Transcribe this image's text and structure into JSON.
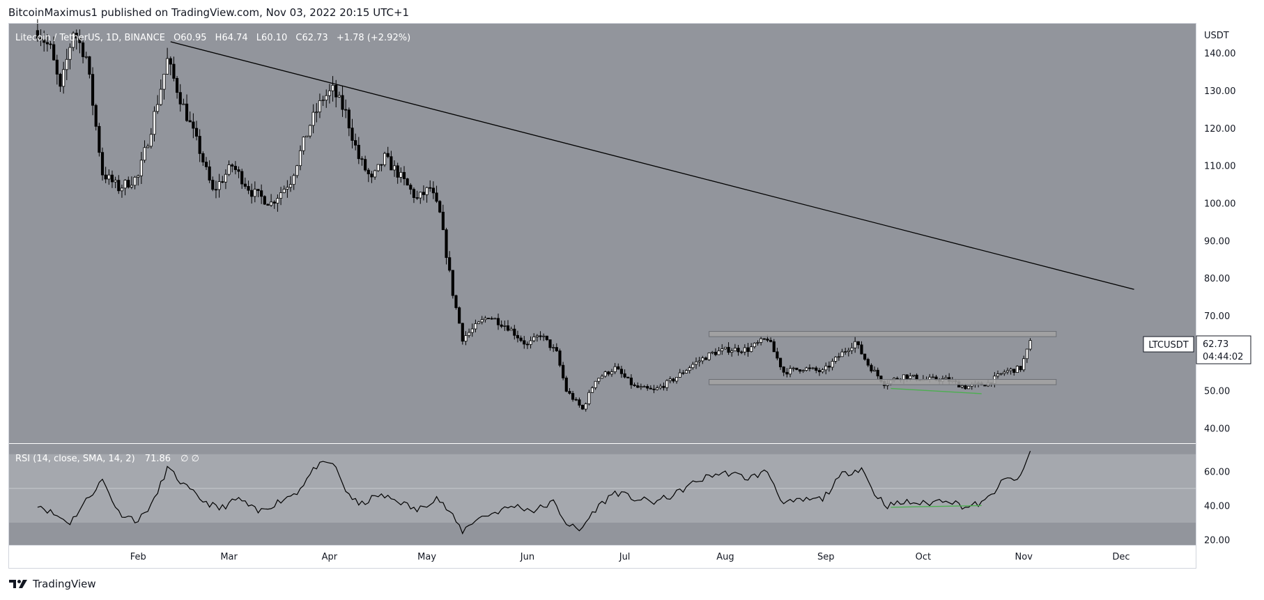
{
  "header": {
    "text": "BitcoinMaximus1 published on TradingView.com, Nov 03, 2022 20:15 UTC+1"
  },
  "footer": {
    "brand": "TradingView",
    "logo_icon": "tradingview-logo-icon"
  },
  "legend": {
    "symbol": "Litecoin / TetherUS, 1D, BINANCE",
    "o_label": "O",
    "o": "60.95",
    "h_label": "H",
    "h": "64.74",
    "l_label": "L",
    "l": "60.10",
    "c_label": "C",
    "c": "62.73",
    "change": "+1.78 (+2.92%)"
  },
  "price_tag": {
    "symbol": "LTCUSDT",
    "price": "62.73",
    "countdown": "04:44:02"
  },
  "rsi_legend": {
    "text": "RSI (14, close, SMA, 14, 2)",
    "value": "71.86",
    "extra": "∅  ∅"
  },
  "colors": {
    "pane_bg": "#92959c",
    "rsi_band": "#a5a8ae",
    "candle": "#000000",
    "trendline": "#000000",
    "channel_fill": "#a3a3a3",
    "divergence": "#4caf50"
  },
  "chart_data": [
    {
      "type": "candlestick",
      "title": "Litecoin / TetherUS, 1D, BINANCE",
      "ylabel": "USDT",
      "ylim": [
        36,
        148
      ],
      "y_ticks": [
        "140.00",
        "130.00",
        "120.00",
        "110.00",
        "100.00",
        "90.00",
        "80.00",
        "70.00",
        "60.00",
        "50.00",
        "40.00"
      ],
      "x_ticks": [
        "Feb",
        "Mar",
        "Apr",
        "May",
        "Jun",
        "Jul",
        "Aug",
        "Sep",
        "Oct",
        "Nov",
        "Dec"
      ],
      "grid": false,
      "close_path": [
        [
          "2022-01-01",
          146
        ],
        [
          "2022-01-05",
          141
        ],
        [
          "2022-01-08",
          130
        ],
        [
          "2022-01-12",
          146
        ],
        [
          "2022-01-16",
          139
        ],
        [
          "2022-01-21",
          108
        ],
        [
          "2022-01-26",
          104
        ],
        [
          "2022-02-01",
          107
        ],
        [
          "2022-02-05",
          120
        ],
        [
          "2022-02-10",
          138
        ],
        [
          "2022-02-14",
          128
        ],
        [
          "2022-02-20",
          114
        ],
        [
          "2022-02-24",
          103
        ],
        [
          "2022-03-02",
          110
        ],
        [
          "2022-03-08",
          103
        ],
        [
          "2022-03-14",
          100
        ],
        [
          "2022-03-20",
          106
        ],
        [
          "2022-03-26",
          121
        ],
        [
          "2022-03-30",
          128
        ],
        [
          "2022-04-02",
          130
        ],
        [
          "2022-04-06",
          124
        ],
        [
          "2022-04-10",
          112
        ],
        [
          "2022-04-14",
          106
        ],
        [
          "2022-04-18",
          112
        ],
        [
          "2022-04-22",
          108
        ],
        [
          "2022-04-28",
          101
        ],
        [
          "2022-05-02",
          104
        ],
        [
          "2022-05-05",
          97
        ],
        [
          "2022-05-09",
          76
        ],
        [
          "2022-05-12",
          64
        ],
        [
          "2022-05-16",
          67
        ],
        [
          "2022-05-20",
          70
        ],
        [
          "2022-05-26",
          67
        ],
        [
          "2022-06-01",
          62
        ],
        [
          "2022-06-05",
          65
        ],
        [
          "2022-06-10",
          60
        ],
        [
          "2022-06-13",
          50
        ],
        [
          "2022-06-18",
          45
        ],
        [
          "2022-06-22",
          53
        ],
        [
          "2022-06-28",
          56
        ],
        [
          "2022-07-04",
          51
        ],
        [
          "2022-07-10",
          50
        ],
        [
          "2022-07-16",
          53
        ],
        [
          "2022-07-22",
          57
        ],
        [
          "2022-07-28",
          60
        ],
        [
          "2022-08-02",
          61
        ],
        [
          "2022-08-08",
          61
        ],
        [
          "2022-08-14",
          64
        ],
        [
          "2022-08-19",
          55
        ],
        [
          "2022-08-25",
          56
        ],
        [
          "2022-08-31",
          55
        ],
        [
          "2022-09-06",
          60
        ],
        [
          "2022-09-10",
          63
        ],
        [
          "2022-09-14",
          57
        ],
        [
          "2022-09-19",
          52
        ],
        [
          "2022-09-25",
          54
        ],
        [
          "2022-10-01",
          53
        ],
        [
          "2022-10-08",
          53
        ],
        [
          "2022-10-14",
          51
        ],
        [
          "2022-10-21",
          52
        ],
        [
          "2022-10-26",
          55
        ],
        [
          "2022-10-31",
          56
        ],
        [
          "2022-11-03",
          62.73
        ]
      ],
      "trendline": [
        [
          "2022-02-11",
          143
        ],
        [
          "2022-12-05",
          77
        ]
      ],
      "channel": {
        "from": "2022-07-27",
        "to": "2022-11-11",
        "top": [
          64.4,
          65.8
        ],
        "bottom": [
          51.6,
          53.0
        ]
      }
    },
    {
      "type": "line",
      "title": "RSI (14, close, SMA, 14, 2)",
      "ylim": [
        17,
        76
      ],
      "y_ticks": [
        "60.00",
        "40.00",
        "20.00"
      ],
      "bands": [
        30,
        70
      ],
      "midline": 50,
      "last_value": 71.86,
      "points": [
        [
          "2022-01-01",
          41
        ],
        [
          "2022-01-06",
          35
        ],
        [
          "2022-01-11",
          30
        ],
        [
          "2022-01-16",
          43
        ],
        [
          "2022-01-21",
          55
        ],
        [
          "2022-01-26",
          36
        ],
        [
          "2022-02-01",
          31
        ],
        [
          "2022-02-06",
          43
        ],
        [
          "2022-02-10",
          62
        ],
        [
          "2022-02-15",
          52
        ],
        [
          "2022-02-20",
          44
        ],
        [
          "2022-02-26",
          38
        ],
        [
          "2022-03-04",
          44
        ],
        [
          "2022-03-10",
          36
        ],
        [
          "2022-03-16",
          42
        ],
        [
          "2022-03-22",
          48
        ],
        [
          "2022-03-28",
          63
        ],
        [
          "2022-04-02",
          65
        ],
        [
          "2022-04-06",
          49
        ],
        [
          "2022-04-10",
          40
        ],
        [
          "2022-04-16",
          46
        ],
        [
          "2022-04-22",
          43
        ],
        [
          "2022-04-28",
          37
        ],
        [
          "2022-05-04",
          45
        ],
        [
          "2022-05-08",
          36
        ],
        [
          "2022-05-12",
          25
        ],
        [
          "2022-05-16",
          32
        ],
        [
          "2022-05-22",
          36
        ],
        [
          "2022-05-28",
          40
        ],
        [
          "2022-06-03",
          37
        ],
        [
          "2022-06-09",
          42
        ],
        [
          "2022-06-13",
          30
        ],
        [
          "2022-06-17",
          25
        ],
        [
          "2022-06-22",
          38
        ],
        [
          "2022-06-28",
          48
        ],
        [
          "2022-07-04",
          44
        ],
        [
          "2022-07-10",
          42
        ],
        [
          "2022-07-16",
          46
        ],
        [
          "2022-07-22",
          53
        ],
        [
          "2022-07-28",
          58
        ],
        [
          "2022-08-02",
          59
        ],
        [
          "2022-08-08",
          56
        ],
        [
          "2022-08-14",
          60
        ],
        [
          "2022-08-19",
          41
        ],
        [
          "2022-08-25",
          43
        ],
        [
          "2022-08-31",
          44
        ],
        [
          "2022-09-06",
          58
        ],
        [
          "2022-09-12",
          62
        ],
        [
          "2022-09-16",
          47
        ],
        [
          "2022-09-20",
          40
        ],
        [
          "2022-09-26",
          42
        ],
        [
          "2022-10-02",
          41
        ],
        [
          "2022-10-08",
          44
        ],
        [
          "2022-10-14",
          39
        ],
        [
          "2022-10-20",
          42
        ],
        [
          "2022-10-26",
          55
        ],
        [
          "2022-10-31",
          56
        ],
        [
          "2022-11-03",
          71.86
        ]
      ],
      "divergence": [
        [
          "2022-09-21",
          39
        ],
        [
          "2022-10-19",
          40
        ]
      ]
    }
  ]
}
